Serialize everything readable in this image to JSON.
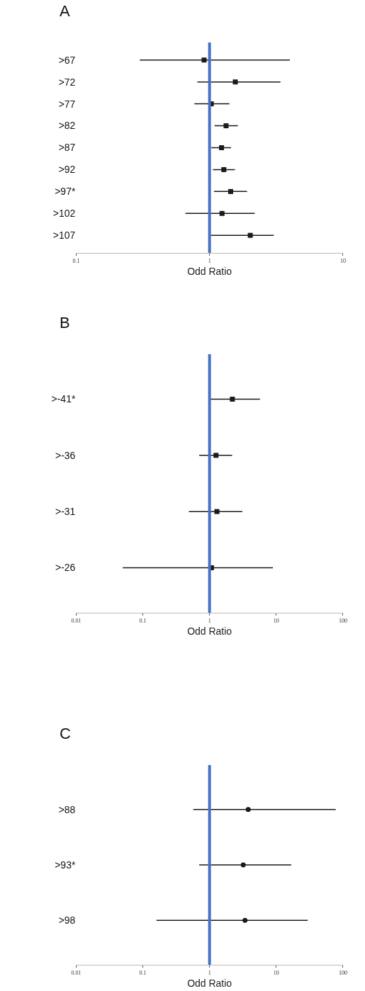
{
  "chart_data": [
    {
      "type": "scatter",
      "title": "A",
      "orientation": "horizontal",
      "xlabel": "Odd Ratio",
      "log": "x",
      "xlim": [
        0.1,
        10
      ],
      "xticks": [
        0.1,
        1,
        10
      ],
      "marker": "square",
      "categories": [
        ">67",
        ">72",
        ">77",
        ">82",
        ">87",
        ">92",
        ">97*",
        ">102",
        ">107"
      ],
      "series": [
        {
          "color": "#1a1a1a",
          "values": [
            0.91,
            1.56,
            1.03,
            1.33,
            1.23,
            1.28,
            1.44,
            1.24,
            2.02
          ],
          "errors": [
            [
              0.3,
              4.0
            ],
            [
              0.81,
              3.4
            ],
            [
              0.77,
              1.41
            ],
            [
              1.09,
              1.63
            ],
            [
              1.03,
              1.45
            ],
            [
              1.06,
              1.55
            ],
            [
              1.08,
              1.91
            ],
            [
              0.66,
              2.18
            ],
            [
              1.02,
              3.03
            ]
          ]
        }
      ],
      "ref_lines": [
        {
          "axis": "x",
          "value": 1,
          "color": "#4472c4"
        }
      ]
    },
    {
      "type": "scatter",
      "title": "B",
      "orientation": "horizontal",
      "xlabel": "Odd Ratio",
      "log": "x",
      "xlim": [
        0.01,
        100
      ],
      "xticks": [
        0.01,
        0.1,
        1,
        10,
        100
      ],
      "marker": "square",
      "categories": [
        ">-41*",
        ">-36",
        ">-31",
        ">-26"
      ],
      "series": [
        {
          "color": "#1a1a1a",
          "values": [
            2.2,
            1.25,
            1.29,
            1.07
          ],
          "errors": [
            [
              1.0,
              5.7
            ],
            [
              0.7,
              2.18
            ],
            [
              0.49,
              3.1
            ],
            [
              0.05,
              8.9
            ]
          ]
        }
      ],
      "ref_lines": [
        {
          "axis": "x",
          "value": 1,
          "color": "#4472c4"
        }
      ]
    },
    {
      "type": "scatter",
      "title": "C",
      "orientation": "horizontal",
      "xlabel": "Odd Ratio",
      "log": "x",
      "xlim": [
        0.01,
        100
      ],
      "xticks": [
        0.01,
        0.1,
        1,
        10,
        100
      ],
      "marker": "circle",
      "categories": [
        ">88",
        ">93*",
        ">98"
      ],
      "series": [
        {
          "color": "#1a1a1a",
          "values": [
            3.8,
            3.2,
            3.4
          ],
          "errors": [
            [
              0.57,
              78
            ],
            [
              0.7,
              16.8
            ],
            [
              0.16,
              29.6
            ]
          ]
        }
      ],
      "ref_lines": [
        {
          "axis": "x",
          "value": 1,
          "color": "#4472c4"
        }
      ]
    }
  ]
}
